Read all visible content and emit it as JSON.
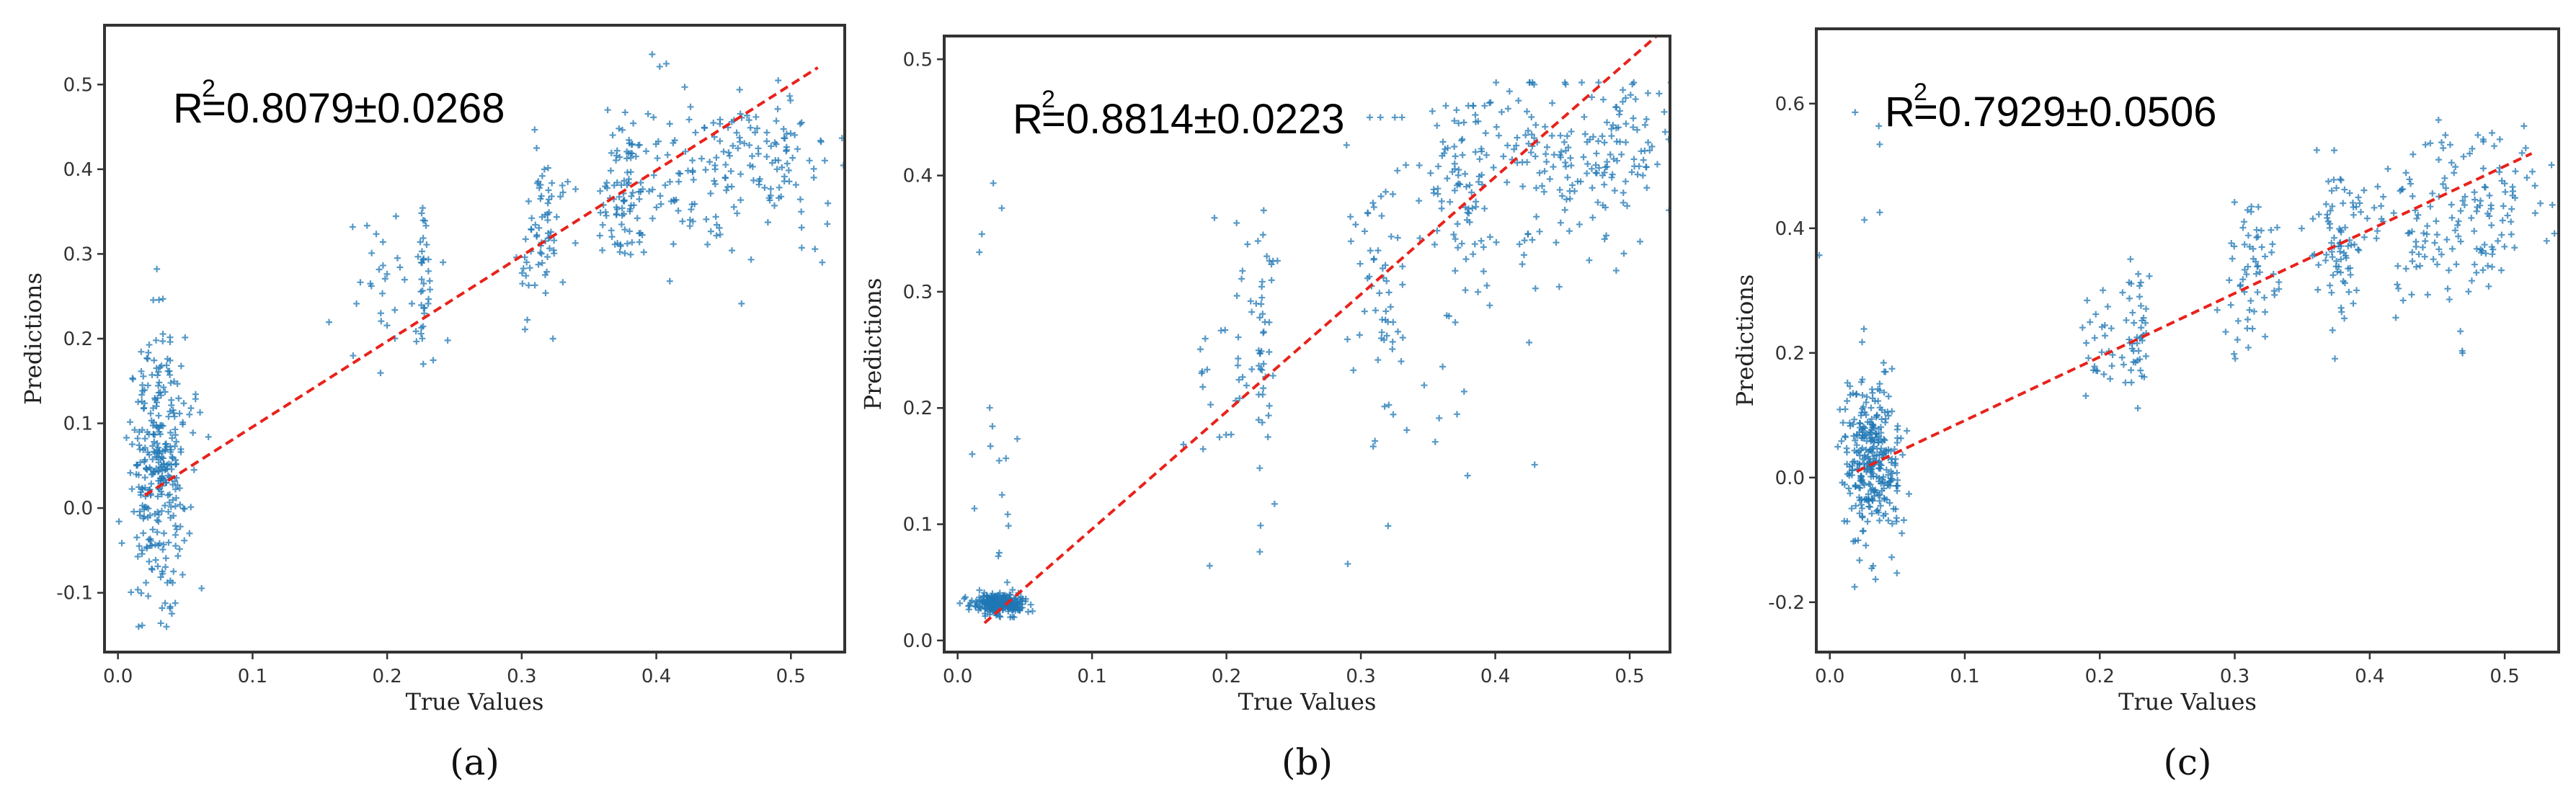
{
  "chart_data": [
    {
      "type": "scatter",
      "caption": "(a)",
      "annotation": {
        "base": "R",
        "sup": "2",
        "rest": "=0.8079±0.0268"
      },
      "xlabel": "True Values",
      "ylabel": "Predictions",
      "xlim": [
        -0.01,
        0.54
      ],
      "ylim": [
        -0.17,
        0.57
      ],
      "xticks": [
        "0.0",
        "0.1",
        "0.2",
        "0.3",
        "0.4",
        "0.5"
      ],
      "yticks": [
        "-0.1",
        "0.0",
        "0.1",
        "0.2",
        "0.3",
        "0.4",
        "0.5"
      ],
      "marker_color": "#1f77b4",
      "fit_line_color": "#e8221b",
      "fit_line": [
        [
          0.02,
          0.015
        ],
        [
          0.52,
          0.52
        ]
      ],
      "point_clusters": [
        {
          "x": 0.031,
          "x_spread": 0.011,
          "y": 0.04,
          "y_spread": 0.075,
          "y_min": -0.14,
          "y_max": 0.29,
          "n": 320
        },
        {
          "x": 0.2,
          "x_spread": 0.015,
          "y": 0.27,
          "y_spread": 0.04,
          "y_min": 0.14,
          "y_max": 0.39,
          "n": 30
        },
        {
          "x": 0.227,
          "x_spread": 0.003,
          "y": 0.27,
          "y_spread": 0.045,
          "y_min": 0.17,
          "y_max": 0.38,
          "n": 35
        },
        {
          "x": 0.313,
          "x_spread": 0.01,
          "y": 0.32,
          "y_spread": 0.05,
          "y_min": 0.2,
          "y_max": 0.46,
          "n": 70
        },
        {
          "x": 0.375,
          "x_spread": 0.01,
          "y": 0.36,
          "y_spread": 0.045,
          "y_min": 0.24,
          "y_max": 0.47,
          "n": 80
        },
        {
          "x": 0.43,
          "x_spread": 0.03,
          "y": 0.4,
          "y_spread": 0.045,
          "y_min": 0.2,
          "y_max": 0.55,
          "n": 110
        },
        {
          "x": 0.49,
          "x_spread": 0.02,
          "y": 0.42,
          "y_spread": 0.045,
          "y_min": 0.29,
          "y_max": 0.51,
          "n": 80
        }
      ]
    },
    {
      "type": "scatter",
      "caption": "(b)",
      "annotation": {
        "base": "R",
        "sup": "2",
        "rest": "=0.8814±0.0223"
      },
      "xlabel": "True Values",
      "ylabel": "Predictions",
      "xlim": [
        -0.01,
        0.53
      ],
      "ylim": [
        -0.01,
        0.52
      ],
      "xticks": [
        "0.0",
        "0.1",
        "0.2",
        "0.3",
        "0.4",
        "0.5"
      ],
      "yticks": [
        "0.0",
        "0.1",
        "0.2",
        "0.3",
        "0.4",
        "0.5"
      ],
      "marker_color": "#1f77b4",
      "fit_line_color": "#e8221b",
      "fit_line": [
        [
          0.02,
          0.015
        ],
        [
          0.52,
          0.52
        ]
      ],
      "point_clusters": [
        {
          "x": 0.031,
          "x_spread": 0.01,
          "y": 0.032,
          "y_spread": 0.004,
          "y_min": 0.02,
          "y_max": 0.045,
          "n": 260
        },
        {
          "x": 0.033,
          "x_spread": 0.01,
          "y": 0.16,
          "y_spread": 0.09,
          "y_min": 0.05,
          "y_max": 0.4,
          "n": 18
        },
        {
          "x": 0.2,
          "x_spread": 0.015,
          "y": 0.25,
          "y_spread": 0.06,
          "y_min": 0.04,
          "y_max": 0.38,
          "n": 35
        },
        {
          "x": 0.228,
          "x_spread": 0.004,
          "y": 0.26,
          "y_spread": 0.06,
          "y_min": 0.05,
          "y_max": 0.37,
          "n": 40
        },
        {
          "x": 0.315,
          "x_spread": 0.012,
          "y": 0.32,
          "y_spread": 0.07,
          "y_min": 0.06,
          "y_max": 0.45,
          "n": 70
        },
        {
          "x": 0.375,
          "x_spread": 0.012,
          "y": 0.38,
          "y_spread": 0.05,
          "y_min": 0.14,
          "y_max": 0.46,
          "n": 90
        },
        {
          "x": 0.44,
          "x_spread": 0.03,
          "y": 0.41,
          "y_spread": 0.04,
          "y_min": 0.15,
          "y_max": 0.48,
          "n": 130
        },
        {
          "x": 0.5,
          "x_spread": 0.015,
          "y": 0.43,
          "y_spread": 0.035,
          "y_min": 0.31,
          "y_max": 0.48,
          "n": 70
        }
      ]
    },
    {
      "type": "scatter",
      "caption": "(c)",
      "annotation": {
        "base": "R",
        "sup": "2",
        "rest": "=0.7929±0.0506"
      },
      "xlabel": "True Values",
      "ylabel": "Predictions",
      "xlim": [
        -0.01,
        0.54
      ],
      "ylim": [
        -0.28,
        0.72
      ],
      "xticks": [
        "0.0",
        "0.1",
        "0.2",
        "0.3",
        "0.4",
        "0.5"
      ],
      "yticks": [
        "-0.2",
        "0.0",
        "0.2",
        "0.4",
        "0.6"
      ],
      "marker_color": "#1f77b4",
      "fit_line_color": "#e8221b",
      "fit_line": [
        [
          0.02,
          0.01
        ],
        [
          0.52,
          0.52
        ]
      ],
      "point_clusters": [
        {
          "x": 0.031,
          "x_spread": 0.011,
          "y": 0.03,
          "y_spread": 0.06,
          "y_min": -0.25,
          "y_max": 0.7,
          "n": 330
        },
        {
          "x": 0.2,
          "x_spread": 0.015,
          "y": 0.23,
          "y_spread": 0.06,
          "y_min": 0.11,
          "y_max": 0.38,
          "n": 30
        },
        {
          "x": 0.228,
          "x_spread": 0.004,
          "y": 0.24,
          "y_spread": 0.06,
          "y_min": 0.11,
          "y_max": 0.43,
          "n": 40
        },
        {
          "x": 0.313,
          "x_spread": 0.01,
          "y": 0.32,
          "y_spread": 0.06,
          "y_min": 0.14,
          "y_max": 0.47,
          "n": 60
        },
        {
          "x": 0.375,
          "x_spread": 0.01,
          "y": 0.37,
          "y_spread": 0.06,
          "y_min": 0.17,
          "y_max": 0.5,
          "n": 70
        },
        {
          "x": 0.435,
          "x_spread": 0.03,
          "y": 0.4,
          "y_spread": 0.06,
          "y_min": 0.14,
          "y_max": 0.62,
          "n": 110
        },
        {
          "x": 0.495,
          "x_spread": 0.02,
          "y": 0.44,
          "y_spread": 0.06,
          "y_min": 0.3,
          "y_max": 0.65,
          "n": 70
        }
      ]
    }
  ]
}
